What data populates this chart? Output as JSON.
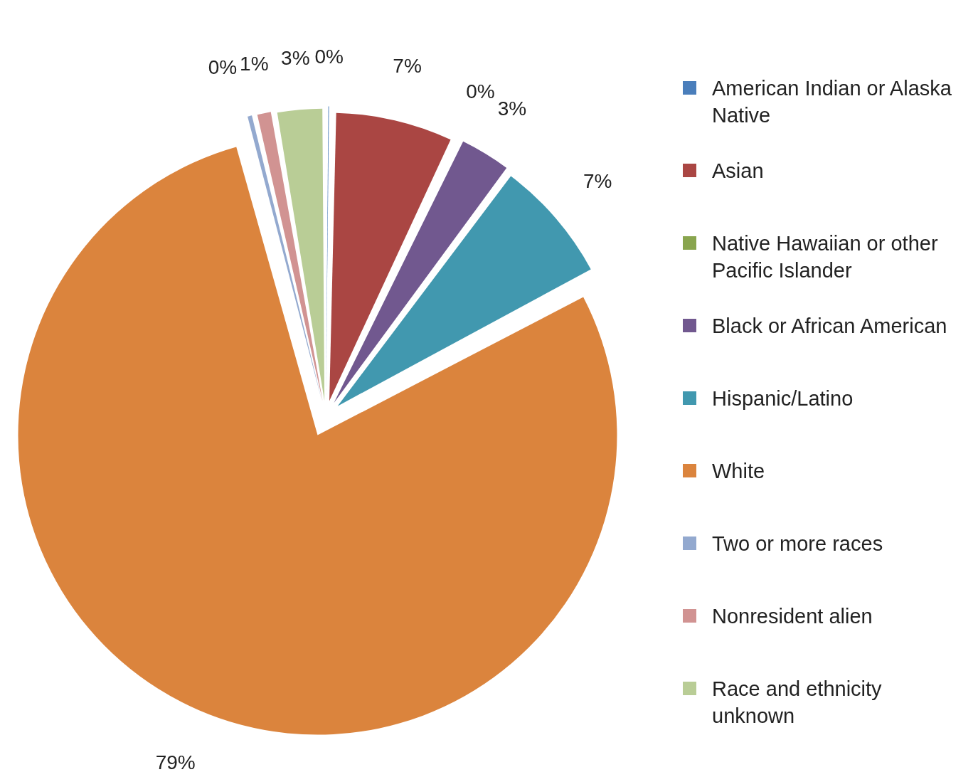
{
  "chart_data": {
    "type": "pie",
    "categories": [
      "American Indian or Alaska Native",
      "Asian",
      "Native Hawaiian or other Pacific Islander",
      "Black or African American",
      "Hispanic/Latino",
      "White",
      "Two or more races",
      "Nonresident alien",
      "Race and ethnicity unknown"
    ],
    "values": [
      0.3,
      6.7,
      0.2,
      3,
      7,
      78.6,
      0.5,
      1,
      2.7
    ],
    "colors": [
      "#4a7ebb",
      "#aa4643",
      "#89a54e",
      "#71588f",
      "#4198af",
      "#db843d",
      "#93a9cf",
      "#d19392",
      "#b9cd96"
    ],
    "value_labels": [
      "0%",
      "7%",
      "0%",
      "3%",
      "7%",
      "79%",
      "0%",
      "1%",
      "3%"
    ],
    "legend": "right"
  }
}
